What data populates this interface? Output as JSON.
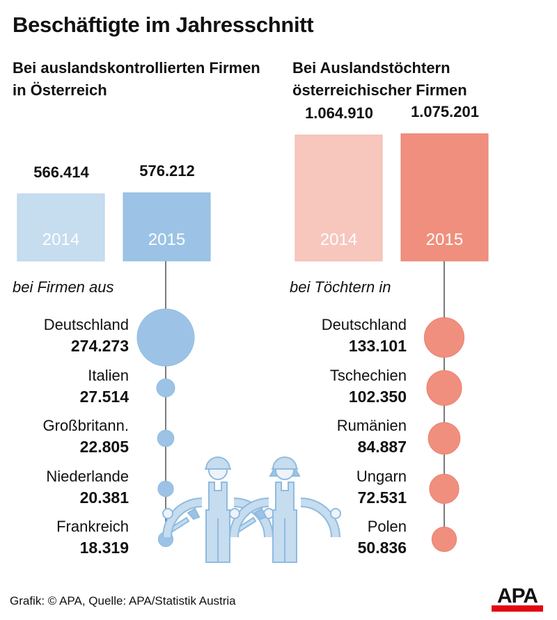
{
  "title": "Beschäftigte im Jahresschnitt",
  "footer": "Grafik: © APA, Quelle: APA/Statistik Austria",
  "logo": "APA",
  "colors": {
    "blue_light": "#c6dcef",
    "blue": "#9cc3e5",
    "blue_line": "#8fbbe0",
    "red_light": "#f7c6bd",
    "red": "#f08f7e",
    "line": "#222222"
  },
  "chart_data": [
    {
      "type": "bar",
      "title": "Bei auslandskontrollierten Firmen in Österreich",
      "categories": [
        "2014",
        "2015"
      ],
      "values": [
        566414,
        576212
      ],
      "value_labels": [
        "566.414",
        "576.212"
      ],
      "breakdown": {
        "type": "bubble",
        "label": "bei Firmen aus",
        "categories": [
          "Deutschland",
          "Italien",
          "Großbritann.",
          "Niederlande",
          "Frankreich"
        ],
        "values": [
          274273,
          27514,
          22805,
          20381,
          18319
        ],
        "value_labels": [
          "274.273",
          "27.514",
          "22.805",
          "20.381",
          "18.319"
        ]
      }
    },
    {
      "type": "bar",
      "title": "Bei Auslandstöchtern österreichischer Firmen",
      "categories": [
        "2014",
        "2015"
      ],
      "values": [
        1064910,
        1075201
      ],
      "value_labels": [
        "1.064.910",
        "1.075.201"
      ],
      "breakdown": {
        "type": "bubble",
        "label": "bei Töchtern in",
        "categories": [
          "Deutschland",
          "Tschechien",
          "Rumänien",
          "Ungarn",
          "Polen"
        ],
        "values": [
          133101,
          102350,
          84887,
          72531,
          50836
        ],
        "value_labels": [
          "133.101",
          "102.350",
          "84.887",
          "72.531",
          "50.836"
        ]
      }
    }
  ]
}
